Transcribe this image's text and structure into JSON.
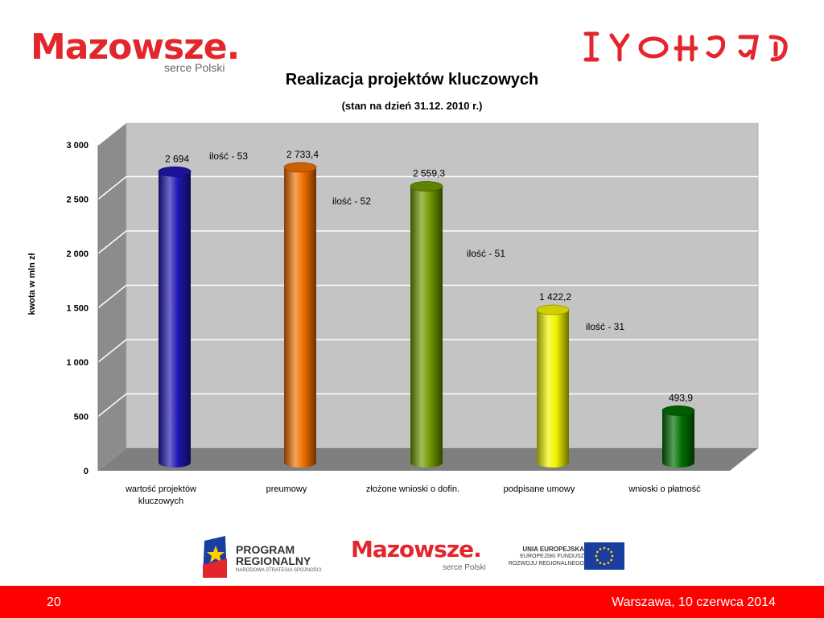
{
  "header": {
    "logo_text": "Mazowsze.",
    "logo_sub": "serce Polski"
  },
  "chart_data": {
    "type": "bar",
    "title": "Realizacja projektów kluczowych",
    "subtitle": "(stan na dzień 31.12. 2010 r.)",
    "ylabel": "kwota w mln zł",
    "xlabel": "",
    "ylim": [
      0,
      3000
    ],
    "yticks": [
      "0",
      "500",
      "1 000",
      "1 500",
      "2 000",
      "2 500",
      "3 000"
    ],
    "categories": [
      "wartość projektów kluczowych",
      "preumowy",
      "złożone wnioski o dofin.",
      "podpisane umowy",
      "wnioski o płatność"
    ],
    "category_lines": [
      [
        "wartość projektów",
        "kluczowych"
      ],
      [
        "preumowy"
      ],
      [
        "złożone wnioski o dofin."
      ],
      [
        "podpisane umowy"
      ],
      [
        "wnioski o płatność"
      ]
    ],
    "values": [
      2694,
      2733.4,
      2559.3,
      1422.2,
      493.9
    ],
    "value_labels": [
      "2 694",
      "2 733,4",
      "2 559,3",
      "1 422,2",
      "493,9"
    ],
    "annotations": [
      "ilość - 53",
      "ilość - 52",
      "ilość - 51",
      "ilość - 31"
    ],
    "colors": [
      "#2016b4",
      "#f07000",
      "#6f9a00",
      "#f4f400",
      "#006f00"
    ],
    "grid": true,
    "legend": "none"
  },
  "bottom_logos": {
    "program_line1": "PROGRAM",
    "program_line2": "REGIONALNY",
    "program_small": "NARODOWA STRATEGIA SPÓJNOŚCI",
    "mazowsze_text": "Mazowsze.",
    "mazowsze_sub": "serce Polski",
    "ue_line1": "UNIA EUROPEJSKA",
    "ue_line2": "EUROPEJSKI FUNDUSZ",
    "ue_line3": "ROZWOJU REGIONALNEGO"
  },
  "footer": {
    "page": "20",
    "date": "Warszawa,    10 czerwca 2014"
  }
}
